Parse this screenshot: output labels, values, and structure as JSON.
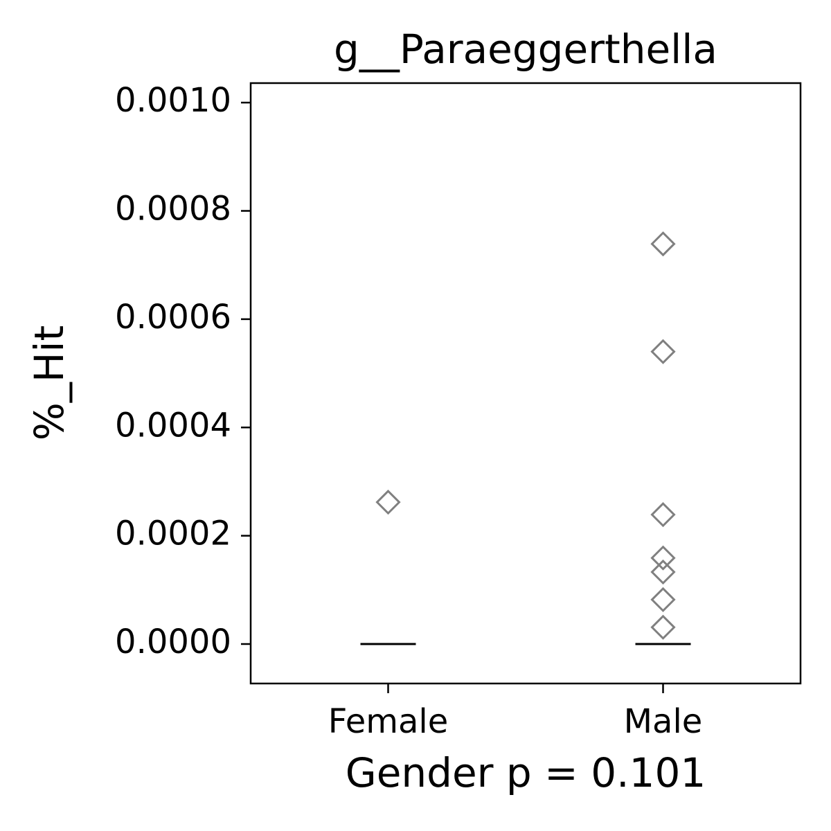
{
  "chart_data": {
    "type": "strip",
    "title": "g__Paraeggerthella",
    "x_label": "Gender p = 0.101",
    "y_label": "%_Hit",
    "categories": [
      "Female",
      "Male"
    ],
    "values": [
      [
        0.000262
      ],
      [
        0.000739,
        0.00054,
        0.000239,
        0.000159,
        0.000133,
        8.2e-05,
        3.1e-05
      ]
    ],
    "medians": [
      0,
      0
    ],
    "color": "#808080",
    "median_color": "#000000",
    "ylim": [
      -7.29e-05,
      0.001036
    ],
    "yticks": [
      {
        "value": 0,
        "label": "0.0000"
      },
      {
        "value": 0.0002,
        "label": "0.0002"
      },
      {
        "value": 0.0004,
        "label": "0.0004"
      },
      {
        "value": 0.0006,
        "label": "0.0006"
      },
      {
        "value": 0.0008,
        "label": "0.0008"
      },
      {
        "value": 0.001,
        "label": "0.0010"
      }
    ],
    "grid": false
  }
}
